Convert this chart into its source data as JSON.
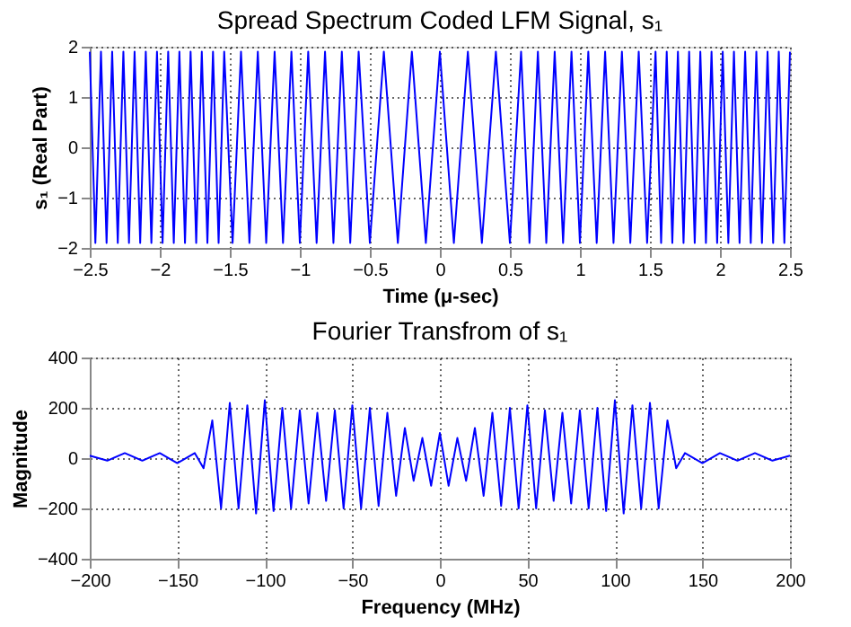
{
  "chart_data": [
    {
      "type": "line",
      "title": "Spread Spectrum Coded LFM Signal, s₁",
      "xlabel": "Time (μ-sec)",
      "ylabel": "s₁ (Real Part)",
      "xlim": [
        -2.5,
        2.5
      ],
      "ylim": [
        -2,
        2
      ],
      "xticks": [
        -2.5,
        -2,
        -1.5,
        -1,
        -0.5,
        0,
        0.5,
        1,
        1.5,
        2,
        2.5
      ],
      "yticks": [
        -2,
        -1,
        0,
        1,
        2
      ],
      "grid": true,
      "line_style": "solid",
      "series": [
        {
          "color": "#0000ff",
          "x": [
            -2.5,
            -2.46,
            -2.42,
            -2.38,
            -2.34,
            -2.3,
            -2.26,
            -2.22,
            -2.18,
            -2.14,
            -2.1,
            -2.06,
            -2.02,
            -1.98,
            -1.94,
            -1.9,
            -1.86,
            -1.82,
            -1.78,
            -1.74,
            -1.7,
            -1.66,
            -1.62,
            -1.58,
            -1.54,
            -1.48,
            -1.42,
            -1.36,
            -1.3,
            -1.24,
            -1.18,
            -1.12,
            -1.06,
            -1.0,
            -0.94,
            -0.88,
            -0.82,
            -0.76,
            -0.7,
            -0.64,
            -0.58,
            -0.5,
            -0.4,
            -0.3,
            -0.2,
            -0.1,
            0,
            0.1,
            0.2,
            0.3,
            0.4,
            0.5,
            0.58,
            0.64,
            0.7,
            0.76,
            0.82,
            0.88,
            0.94,
            1.0,
            1.06,
            1.12,
            1.18,
            1.24,
            1.3,
            1.36,
            1.42,
            1.48,
            1.54,
            1.58,
            1.62,
            1.66,
            1.7,
            1.74,
            1.78,
            1.82,
            1.86,
            1.9,
            1.94,
            1.98,
            2.02,
            2.06,
            2.1,
            2.14,
            2.18,
            2.22,
            2.26,
            2.3,
            2.34,
            2.38,
            2.42,
            2.46,
            2.5
          ],
          "values": [
            1.9,
            -1.9,
            1.9,
            -1.9,
            1.9,
            -1.9,
            1.9,
            -1.9,
            1.9,
            -1.9,
            1.9,
            -1.9,
            1.9,
            -1.9,
            1.9,
            -1.9,
            1.9,
            -1.9,
            1.9,
            -1.9,
            1.9,
            -1.9,
            1.9,
            -1.9,
            1.9,
            -1.9,
            1.9,
            -1.9,
            1.9,
            -1.9,
            1.9,
            -1.9,
            1.9,
            -1.9,
            1.9,
            -1.9,
            1.9,
            -1.9,
            1.9,
            -1.9,
            1.9,
            -1.9,
            1.9,
            -1.9,
            1.9,
            -1.9,
            1.9,
            -1.9,
            1.9,
            -1.9,
            1.9,
            -1.9,
            1.9,
            -1.9,
            1.9,
            -1.9,
            1.9,
            -1.9,
            1.9,
            -1.9,
            1.9,
            -1.9,
            1.9,
            -1.9,
            1.9,
            -1.9,
            1.9,
            -1.9,
            1.9,
            -1.9,
            1.9,
            -1.9,
            1.9,
            -1.9,
            1.9,
            -1.9,
            1.9,
            -1.9,
            1.9,
            -1.9,
            1.9,
            -1.9,
            1.9,
            -1.9,
            1.9,
            -1.9,
            1.9,
            -1.9,
            1.9,
            -1.9,
            1.9,
            -1.9,
            1.9
          ]
        }
      ]
    },
    {
      "type": "line",
      "title": "Fourier Transfrom of s₁",
      "xlabel": "Frequency (MHz)",
      "ylabel": "Magnitude",
      "xlim": [
        -200,
        200
      ],
      "ylim": [
        -400,
        400
      ],
      "xticks": [
        -200,
        -150,
        -100,
        -50,
        0,
        50,
        100,
        150,
        200
      ],
      "yticks": [
        -400,
        -200,
        0,
        200,
        400
      ],
      "grid": true,
      "line_style": "solid",
      "series": [
        {
          "color": "#0000ff",
          "x": [
            -200,
            -190,
            -180,
            -170,
            -160,
            -150,
            -140,
            -135,
            -130,
            -125,
            -120,
            -115,
            -110,
            -105,
            -100,
            -95,
            -90,
            -85,
            -80,
            -75,
            -70,
            -65,
            -60,
            -55,
            -50,
            -45,
            -40,
            -35,
            -30,
            -25,
            -20,
            -15,
            -10,
            -5,
            0,
            5,
            10,
            15,
            20,
            25,
            30,
            35,
            40,
            45,
            50,
            55,
            60,
            65,
            70,
            75,
            80,
            85,
            90,
            95,
            100,
            105,
            110,
            115,
            120,
            125,
            130,
            135,
            140,
            150,
            160,
            170,
            180,
            190,
            200
          ],
          "values": [
            10,
            -10,
            20,
            -10,
            20,
            -20,
            20,
            -40,
            150,
            -200,
            220,
            -200,
            210,
            -220,
            230,
            -210,
            200,
            -200,
            190,
            -180,
            180,
            -170,
            190,
            -200,
            210,
            -200,
            200,
            -190,
            180,
            -150,
            120,
            -90,
            80,
            -110,
            100,
            -110,
            80,
            -90,
            120,
            -150,
            180,
            -190,
            200,
            -200,
            210,
            -200,
            190,
            -170,
            180,
            -180,
            190,
            -200,
            200,
            -210,
            230,
            -220,
            210,
            -200,
            220,
            -200,
            150,
            -40,
            20,
            -20,
            20,
            -10,
            20,
            -10,
            10
          ]
        }
      ]
    }
  ]
}
